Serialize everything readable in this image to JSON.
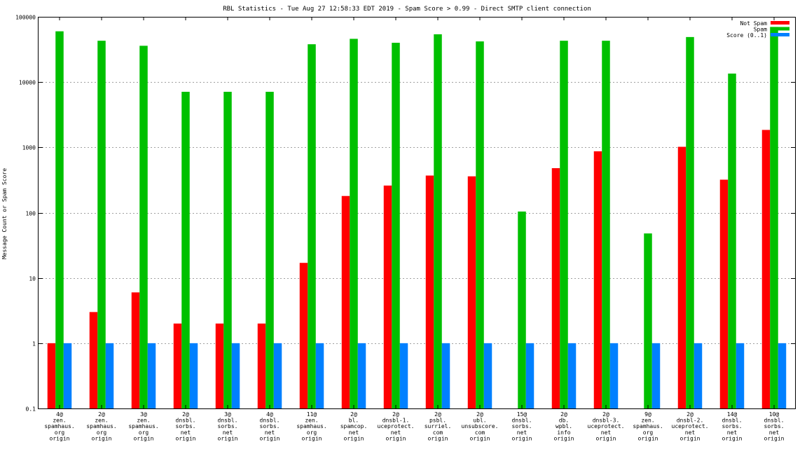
{
  "chart_data": {
    "type": "bar",
    "title": "RBL Statistics - Tue Aug 27 12:58:33 EDT 2019 - Spam Score > 0.99 - Direct SMTP client connection",
    "xlabel": "",
    "ylabel": "Message Count or Spam Score",
    "yscale": "log",
    "ylim": [
      0.1,
      100000
    ],
    "yticks": [
      "0.1",
      "1",
      "10",
      "100",
      "1000",
      "10000",
      "100000"
    ],
    "grid": true,
    "legend_position": "top-right",
    "categories": [
      [
        "4@",
        "zen.",
        "spamhaus.",
        "org",
        "origin"
      ],
      [
        "2@",
        "zen.",
        "spamhaus.",
        "org",
        "origin"
      ],
      [
        "3@",
        "zen.",
        "spamhaus.",
        "org",
        "origin"
      ],
      [
        "2@",
        "dnsbl.",
        "sorbs.",
        "net",
        "origin"
      ],
      [
        "3@",
        "dnsbl.",
        "sorbs.",
        "net",
        "origin"
      ],
      [
        "4@",
        "dnsbl.",
        "sorbs.",
        "net",
        "origin"
      ],
      [
        "11@",
        "zen.",
        "spamhaus.",
        "org",
        "origin"
      ],
      [
        "2@",
        "bl.",
        "spamcop.",
        "net",
        "origin"
      ],
      [
        "2@",
        "dnsbl-1.",
        "uceprotect.",
        "net",
        "origin"
      ],
      [
        "2@",
        "psbl.",
        "surriel.",
        "com",
        "origin"
      ],
      [
        "2@",
        "ubl.",
        "unsubscore.",
        "com",
        "origin"
      ],
      [
        "15@",
        "dnsbl.",
        "sorbs.",
        "net",
        "origin"
      ],
      [
        "2@",
        "db.",
        "wpbl.",
        "info",
        "origin"
      ],
      [
        "2@",
        "dnsbl-3.",
        "uceprotect.",
        "net",
        "origin"
      ],
      [
        "9@",
        "zen.",
        "spamhaus.",
        "org",
        "origin"
      ],
      [
        "2@",
        "dnsbl-2.",
        "uceprotect.",
        "net",
        "origin"
      ],
      [
        "14@",
        "dnsbl.",
        "sorbs.",
        "net",
        "origin"
      ],
      [
        "10@",
        "dnsbl.",
        "sorbs.",
        "net",
        "origin"
      ]
    ],
    "series": [
      {
        "name": "Not Spam",
        "color": "#ff0000",
        "values": [
          1,
          3,
          6,
          2,
          2,
          2,
          17,
          180,
          260,
          370,
          360,
          null,
          480,
          870,
          null,
          1020,
          320,
          1850
        ]
      },
      {
        "name": "Spam",
        "color": "#00c000",
        "values": [
          60000,
          43000,
          36000,
          7100,
          7100,
          7100,
          38000,
          46000,
          40000,
          54000,
          42000,
          104,
          43000,
          43000,
          48,
          49000,
          13500,
          70000
        ]
      },
      {
        "name": "Score (0..1)",
        "color": "#0080ff",
        "values": [
          1,
          1,
          1,
          1,
          1,
          1,
          1,
          1,
          1,
          1,
          1,
          1,
          1,
          1,
          1,
          1,
          1,
          1
        ]
      }
    ]
  }
}
